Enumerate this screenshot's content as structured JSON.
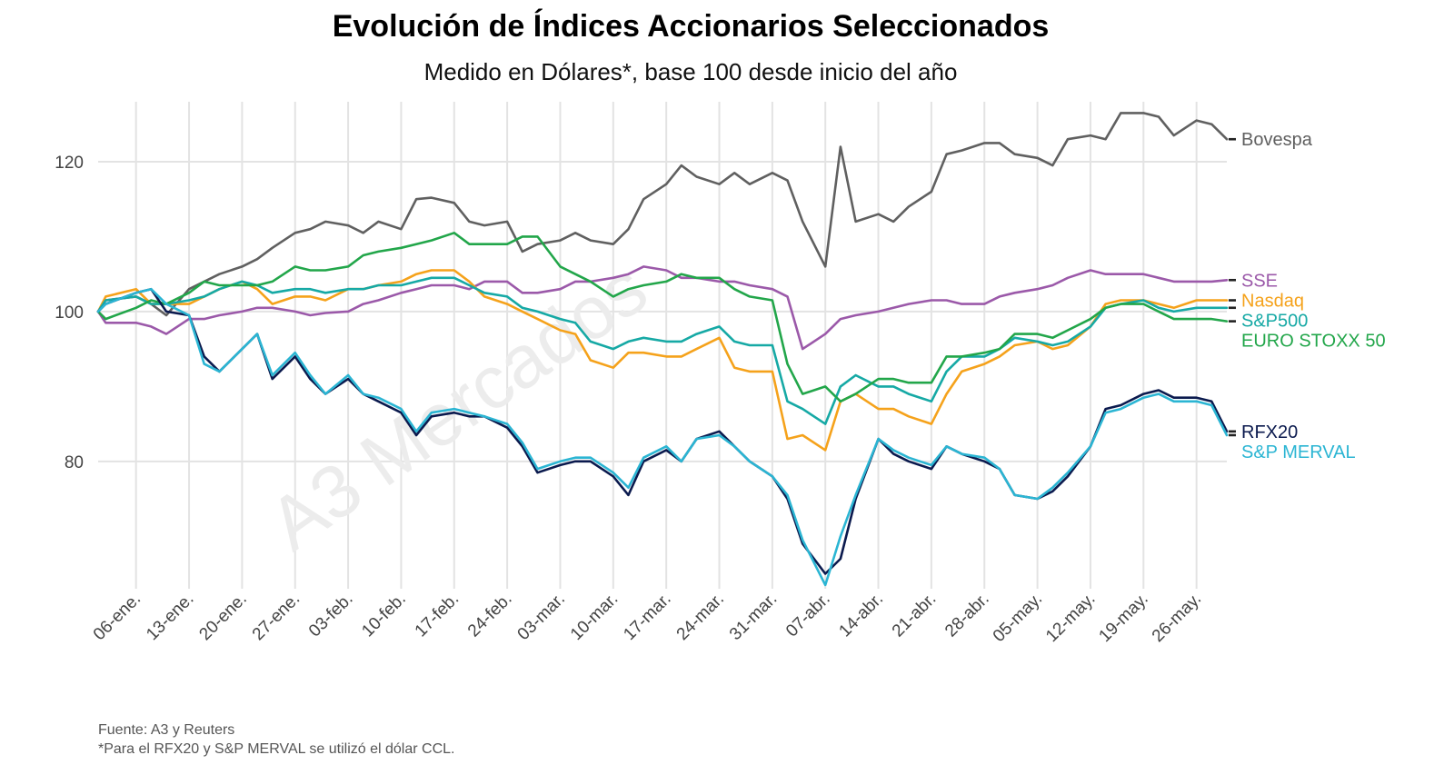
{
  "title": "Evolución de Índices Accionarios Seleccionados",
  "subtitle": "Medido en Dólares*, base 100 desde inicio del año",
  "watermark": "A3 Mercados",
  "footnotes": {
    "source": "Fuente: A3 y Reuters",
    "note": "*Para el RFX20 y S&P MERVAL se utilizó el dólar CCL."
  },
  "chart_data": {
    "type": "line",
    "grid": true,
    "legend": "direct labels at right end of each line",
    "ylim": [
      63,
      128
    ],
    "yticks": [
      80,
      100,
      120
    ],
    "x_ticks": [
      "06-ene.",
      "13-ene.",
      "20-ene.",
      "27-ene.",
      "03-feb.",
      "10-feb.",
      "17-feb.",
      "24-feb.",
      "03-mar.",
      "10-mar.",
      "17-mar.",
      "24-mar.",
      "31-mar.",
      "07-abr.",
      "14-abr.",
      "21-abr.",
      "28-abr.",
      "05-may.",
      "12-may.",
      "19-may.",
      "26-may."
    ],
    "x": [
      "2025-01-01",
      "2025-01-02",
      "2025-01-06",
      "2025-01-08",
      "2025-01-10",
      "2025-01-13",
      "2025-01-15",
      "2025-01-17",
      "2025-01-20",
      "2025-01-22",
      "2025-01-24",
      "2025-01-27",
      "2025-01-29",
      "2025-01-31",
      "2025-02-03",
      "2025-02-05",
      "2025-02-07",
      "2025-02-10",
      "2025-02-12",
      "2025-02-14",
      "2025-02-17",
      "2025-02-19",
      "2025-02-21",
      "2025-02-24",
      "2025-02-26",
      "2025-02-28",
      "2025-03-03",
      "2025-03-05",
      "2025-03-07",
      "2025-03-10",
      "2025-03-12",
      "2025-03-14",
      "2025-03-17",
      "2025-03-19",
      "2025-03-21",
      "2025-03-24",
      "2025-03-26",
      "2025-03-28",
      "2025-03-31",
      "2025-04-02",
      "2025-04-04",
      "2025-04-07",
      "2025-04-09",
      "2025-04-11",
      "2025-04-14",
      "2025-04-16",
      "2025-04-18",
      "2025-04-21",
      "2025-04-23",
      "2025-04-25",
      "2025-04-28",
      "2025-04-30",
      "2025-05-02",
      "2025-05-05",
      "2025-05-07",
      "2025-05-09",
      "2025-05-12",
      "2025-05-14",
      "2025-05-16",
      "2025-05-19",
      "2025-05-21",
      "2025-05-23",
      "2025-05-26",
      "2025-05-28",
      "2025-05-30"
    ],
    "series": [
      {
        "name": "Bovespa",
        "color": "#606060",
        "values": [
          100,
          101.5,
          102,
          101,
          99.5,
          103,
          104,
          105,
          106,
          107,
          108.5,
          110.5,
          111,
          112,
          111.5,
          110.5,
          112,
          111,
          115,
          115.2,
          114.5,
          112,
          111.5,
          112,
          108,
          109,
          109.5,
          110.5,
          109.5,
          109,
          111,
          115,
          117,
          119.5,
          118,
          117,
          118.5,
          117,
          118.5,
          117.5,
          112,
          106,
          122,
          112,
          113,
          112,
          114,
          116,
          121,
          121.5,
          122.5,
          122.5,
          121,
          120.5,
          119.5,
          123,
          123.5,
          123,
          126.5,
          126.5,
          126,
          123.5,
          125.5,
          125,
          123
        ]
      },
      {
        "name": "SSE",
        "color": "#9b59a9",
        "values": [
          100,
          98.5,
          98.5,
          98,
          97,
          99,
          99,
          99.5,
          100,
          100.5,
          100.5,
          100,
          99.5,
          99.8,
          100,
          101,
          101.5,
          102.5,
          103,
          103.5,
          103.5,
          103,
          104,
          104,
          102.5,
          102.5,
          103,
          104,
          104,
          104.5,
          105,
          106,
          105.5,
          104.5,
          104.5,
          104,
          104,
          103.5,
          103,
          102,
          95,
          97,
          99,
          99.5,
          100,
          100.5,
          101,
          101.5,
          101.5,
          101,
          101,
          102,
          102.5,
          103,
          103.5,
          104.5,
          105.5,
          105,
          105,
          105,
          104.5,
          104,
          104,
          104,
          104.2
        ]
      },
      {
        "name": "Nasdaq",
        "color": "#f5a21b",
        "values": [
          100,
          102,
          103,
          101,
          101,
          101,
          102,
          103,
          104,
          103,
          101,
          102,
          102,
          101.5,
          103,
          103,
          103.5,
          104,
          105,
          105.5,
          105.5,
          104,
          102,
          101,
          100,
          99,
          97.5,
          97,
          93.5,
          92.5,
          94.5,
          94.5,
          94,
          94,
          95,
          96.5,
          92.5,
          92,
          92,
          83,
          83.5,
          81.5,
          88,
          89,
          87,
          87,
          86,
          85,
          89,
          92,
          93,
          94,
          95.5,
          96,
          95,
          95.5,
          98,
          101,
          101.5,
          101.5,
          101,
          100.5,
          101.5,
          101.5,
          101.5
        ]
      },
      {
        "name": "S&P500",
        "color": "#16a9a5",
        "values": [
          100,
          101.5,
          102,
          101,
          101,
          101.5,
          102,
          103,
          104,
          103.5,
          102.5,
          103,
          103,
          102.5,
          103,
          103,
          103.5,
          103.5,
          104,
          104.5,
          104.5,
          103.5,
          102.5,
          102,
          100.5,
          100,
          99,
          98.5,
          96,
          95,
          96,
          96.5,
          96,
          96,
          97,
          98,
          96,
          95.5,
          95.5,
          88,
          87,
          85,
          90,
          91.5,
          90,
          90,
          89,
          88,
          92,
          94,
          94,
          95,
          96.5,
          96,
          95.5,
          96,
          98,
          100.5,
          101,
          101.5,
          100.5,
          100,
          100.5,
          100.5,
          100.5
        ]
      },
      {
        "name": "EURO STOXX 50",
        "color": "#22a64a",
        "values": [
          100,
          99,
          100.5,
          101.5,
          101,
          102.5,
          104,
          103.5,
          103.5,
          103.5,
          104,
          106,
          105.5,
          105.5,
          106,
          107.5,
          108,
          108.5,
          109,
          109.5,
          110.5,
          109,
          109,
          109,
          110,
          110,
          106,
          105,
          104,
          102,
          103,
          103.5,
          104,
          105,
          104.5,
          104.5,
          103,
          102,
          101.5,
          93,
          89,
          90,
          88,
          89,
          91,
          91,
          90.5,
          90.5,
          94,
          94,
          94.5,
          95,
          97,
          97,
          96.5,
          97.5,
          99,
          100.5,
          101,
          101,
          100,
          99,
          99,
          99,
          98.7
        ]
      },
      {
        "name": "RFX20",
        "color": "#0b1a4e",
        "values": [
          100,
          101,
          102.5,
          103,
          100,
          99.5,
          94,
          92,
          95,
          97,
          91,
          94,
          91,
          89,
          91,
          89,
          88,
          86.5,
          83.5,
          86,
          86.5,
          86,
          86,
          84.5,
          82,
          78.5,
          79.5,
          80,
          80,
          78,
          75.5,
          80,
          81.5,
          80,
          83,
          84,
          82,
          80,
          78,
          75,
          69,
          65,
          67,
          75,
          83,
          81,
          80,
          79,
          82,
          81,
          80,
          79,
          75.5,
          75,
          76,
          78,
          82,
          87,
          87.5,
          89,
          89.5,
          88.5,
          88.5,
          88,
          84
        ]
      },
      {
        "name": "S&P MERVAL",
        "color": "#2bb5d3",
        "values": [
          100,
          101,
          102.5,
          103,
          101,
          99.5,
          93,
          92,
          95,
          97,
          91.5,
          94.5,
          91.5,
          89,
          91.5,
          89,
          88.5,
          87,
          84,
          86.5,
          87,
          86.5,
          86,
          85,
          82.5,
          79,
          80,
          80.5,
          80.5,
          78.5,
          76.5,
          80.5,
          82,
          80,
          83,
          83.5,
          82,
          80,
          78,
          75.5,
          69.5,
          63.5,
          70,
          75.5,
          83,
          81.5,
          80.5,
          79.5,
          82,
          81,
          80.5,
          79,
          75.5,
          75,
          76.5,
          78.5,
          82,
          86.5,
          87,
          88.5,
          89,
          88,
          88,
          87.5,
          83.5
        ]
      }
    ]
  }
}
